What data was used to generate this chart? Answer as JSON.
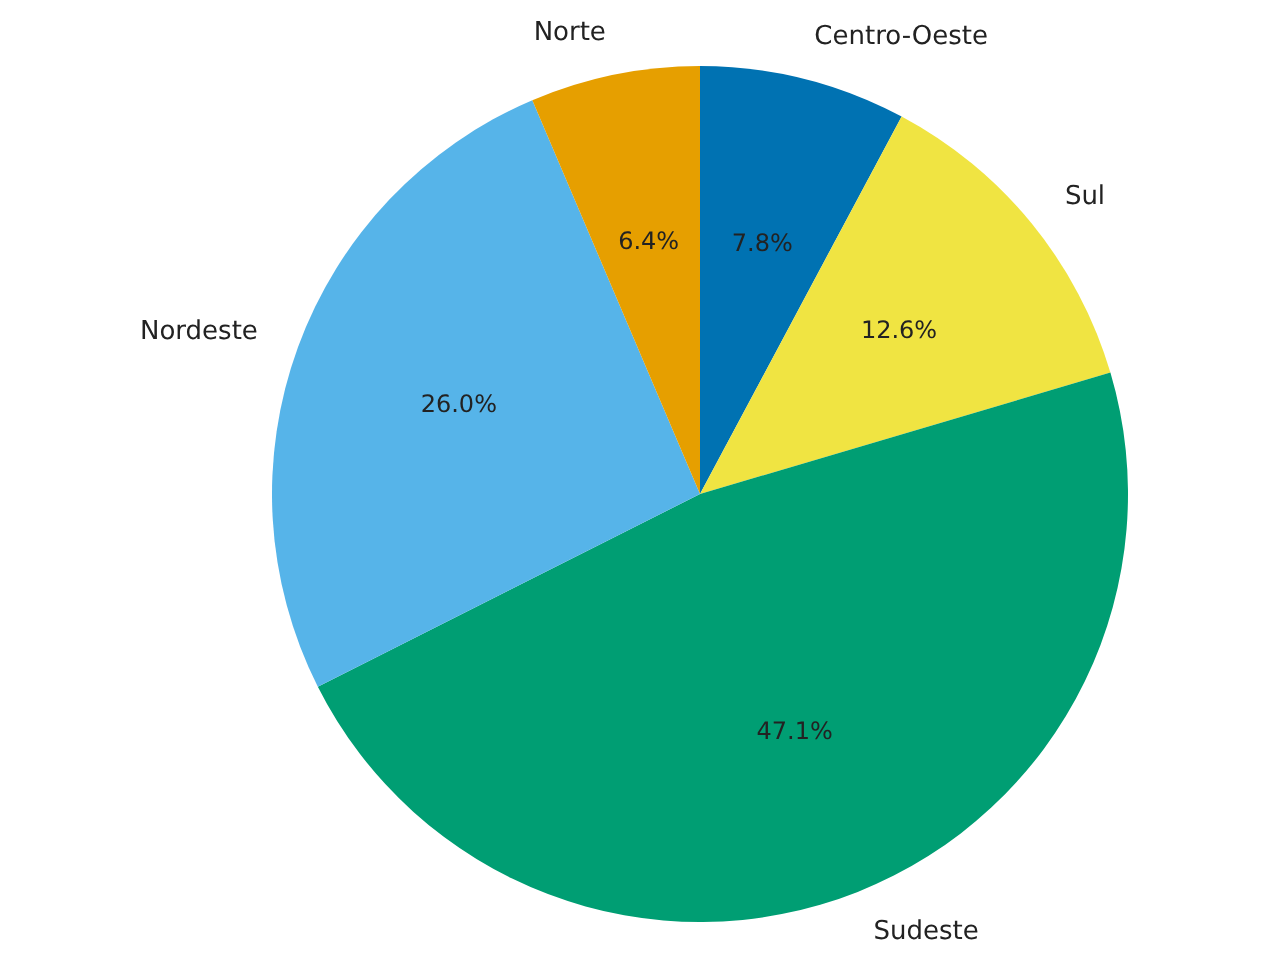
{
  "chart_data": {
    "type": "pie",
    "categories": [
      "Centro-Oeste",
      "Sul",
      "Sudeste",
      "Nordeste",
      "Norte"
    ],
    "values": [
      7.8,
      12.6,
      47.1,
      26.0,
      6.4
    ],
    "value_labels": [
      "7.8%",
      "12.6%",
      "47.1%",
      "26.0%",
      "6.4%"
    ],
    "colors": [
      "#0072b2",
      "#f0e442",
      "#009e73",
      "#56b4e9",
      "#e69f00"
    ]
  }
}
